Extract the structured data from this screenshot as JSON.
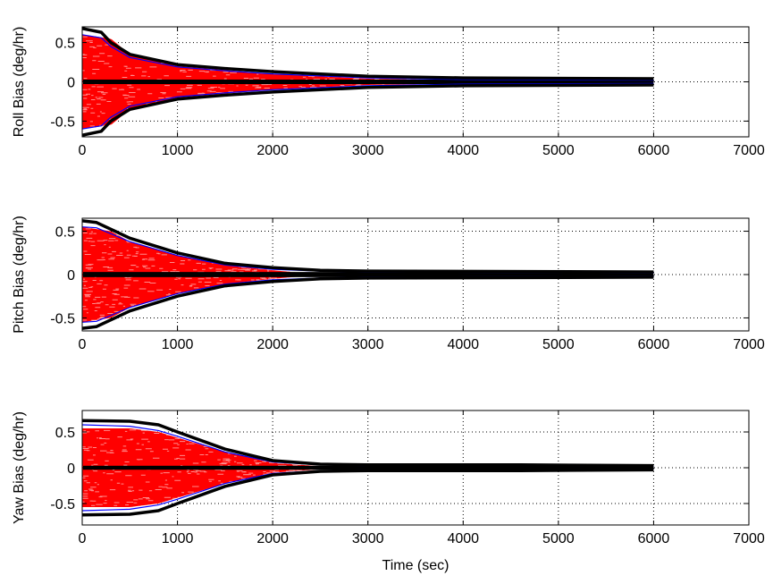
{
  "chart_data": [
    {
      "type": "line",
      "ylabel": "Roll Bias (deg/hr)",
      "xlabel": "",
      "xlim": [
        0,
        7000
      ],
      "ylim": [
        -0.7,
        0.7
      ],
      "xticks": [
        "0",
        "1000",
        "2000",
        "3000",
        "4000",
        "5000",
        "6000",
        "7000"
      ],
      "yticks": [
        {
          "v": 0.5,
          "label": "0.5"
        },
        {
          "v": 0,
          "label": "0"
        },
        {
          "v": -0.5,
          "label": "-0.5"
        }
      ],
      "grid": true,
      "series": [
        {
          "role": "envelope",
          "color": "#000000",
          "x": [
            0,
            200,
            300,
            500,
            1000,
            1500,
            2000,
            3000,
            4000,
            6000
          ],
          "y": [
            0.68,
            0.63,
            0.5,
            0.35,
            0.22,
            0.17,
            0.13,
            0.07,
            0.05,
            0.04
          ]
        },
        {
          "role": "sigma",
          "color": "#0000ff",
          "x": [
            0,
            200,
            300,
            500,
            1000,
            1500,
            2000,
            3000,
            4000,
            6000
          ],
          "y": [
            0.6,
            0.56,
            0.45,
            0.31,
            0.19,
            0.14,
            0.1,
            0.05,
            0.03,
            0.02
          ]
        },
        {
          "role": "error-runs",
          "color": "#ff0000",
          "x": [
            0,
            300,
            500,
            1000,
            1500,
            2000,
            3000,
            4000,
            4500
          ],
          "y": [
            0.6,
            0.55,
            0.35,
            0.2,
            0.15,
            0.1,
            0.04,
            0.02,
            0.0
          ]
        }
      ]
    },
    {
      "type": "line",
      "ylabel": "Pitch Bias (deg/hr)",
      "xlabel": "",
      "xlim": [
        0,
        7000
      ],
      "ylim": [
        -0.65,
        0.65
      ],
      "xticks": [
        "0",
        "1000",
        "2000",
        "3000",
        "4000",
        "5000",
        "6000",
        "7000"
      ],
      "yticks": [
        {
          "v": 0.5,
          "label": "0.5"
        },
        {
          "v": 0,
          "label": "0"
        },
        {
          "v": -0.5,
          "label": "-0.5"
        }
      ],
      "grid": true,
      "series": [
        {
          "role": "envelope",
          "color": "#000000",
          "x": [
            0,
            150,
            500,
            1000,
            1500,
            2000,
            2500,
            3000,
            6000
          ],
          "y": [
            0.62,
            0.6,
            0.42,
            0.25,
            0.13,
            0.08,
            0.05,
            0.04,
            0.03
          ]
        },
        {
          "role": "sigma",
          "color": "#0000ff",
          "x": [
            0,
            150,
            500,
            1000,
            1500,
            2000,
            2500,
            3000,
            6000
          ],
          "y": [
            0.55,
            0.54,
            0.38,
            0.22,
            0.11,
            0.06,
            0.04,
            0.03,
            0.02
          ]
        },
        {
          "role": "error-runs",
          "color": "#ff0000",
          "x": [
            0,
            300,
            500,
            1000,
            1500,
            2000,
            2500
          ],
          "y": [
            0.55,
            0.5,
            0.38,
            0.22,
            0.11,
            0.05,
            0.0
          ]
        }
      ]
    },
    {
      "type": "line",
      "ylabel": "Yaw Bias (deg/hr)",
      "xlabel": "Time (sec)",
      "xlim": [
        0,
        7000
      ],
      "ylim": [
        -0.8,
        0.8
      ],
      "xticks": [
        "0",
        "1000",
        "2000",
        "3000",
        "4000",
        "5000",
        "6000",
        "7000"
      ],
      "yticks": [
        {
          "v": 0.5,
          "label": "0.5"
        },
        {
          "v": 0,
          "label": "0"
        },
        {
          "v": -0.5,
          "label": "-0.5"
        }
      ],
      "grid": true,
      "series": [
        {
          "role": "envelope",
          "color": "#000000",
          "x": [
            0,
            500,
            800,
            1000,
            1500,
            2000,
            2500,
            3000,
            4600,
            6000
          ],
          "y": [
            0.66,
            0.65,
            0.6,
            0.5,
            0.26,
            0.1,
            0.05,
            0.04,
            0.04,
            0.03
          ]
        },
        {
          "role": "sigma",
          "color": "#0000ff",
          "x": [
            0,
            500,
            800,
            1000,
            1500,
            2000,
            2500,
            3000,
            4600,
            6000
          ],
          "y": [
            0.6,
            0.58,
            0.52,
            0.44,
            0.22,
            0.08,
            0.04,
            0.03,
            0.03,
            0.02
          ]
        },
        {
          "role": "error-runs",
          "color": "#ff0000",
          "x": [
            0,
            500,
            800,
            1000,
            1500,
            2000,
            2500,
            2700
          ],
          "y": [
            0.55,
            0.55,
            0.5,
            0.42,
            0.22,
            0.07,
            0.02,
            0.0
          ]
        }
      ]
    }
  ]
}
